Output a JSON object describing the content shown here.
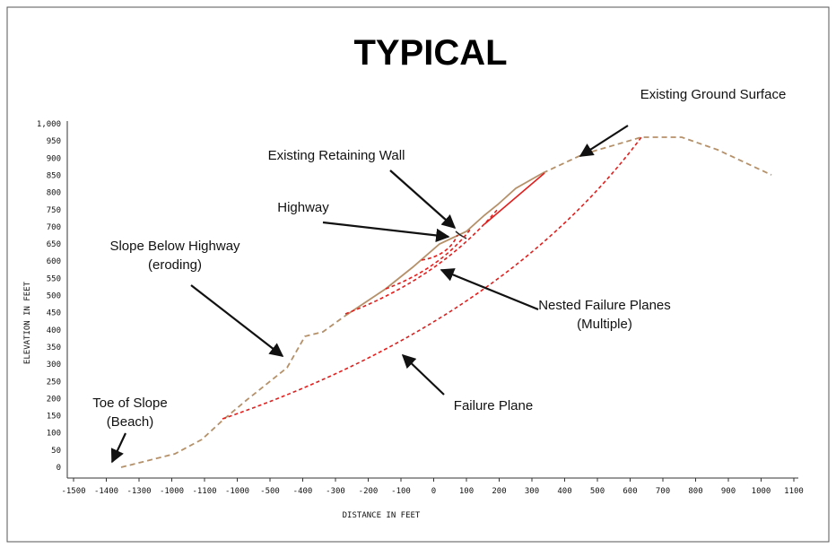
{
  "title": "TYPICAL",
  "y_axis": {
    "label": "ELEVATION IN FEET",
    "ticks": [
      "0",
      "50",
      "100",
      "150",
      "200",
      "250",
      "300",
      "350",
      "400",
      "450",
      "500",
      "550",
      "600",
      "650",
      "700",
      "750",
      "800",
      "850",
      "900",
      "950",
      "1,000"
    ]
  },
  "x_axis": {
    "label": "DISTANCE IN FEET",
    "ticks": [
      "-1500",
      "-1400",
      "-1300",
      "-1000",
      "-1100",
      "-1000",
      "-500",
      "-400",
      "-300",
      "-200",
      "-100",
      "0",
      "100",
      "200",
      "300",
      "400",
      "500",
      "600",
      "700",
      "800",
      "900",
      "1000",
      "1100"
    ]
  },
  "annotations": [
    {
      "lines": [
        "Existing Ground Surface"
      ]
    },
    {
      "lines": [
        "Existing Retaining Wall"
      ]
    },
    {
      "lines": [
        "Highway"
      ]
    },
    {
      "lines": [
        "Slope Below Highway",
        "(eroding)"
      ]
    },
    {
      "lines": [
        "Nested Failure Planes",
        "(Multiple)"
      ]
    },
    {
      "lines": [
        "Failure Plane"
      ]
    },
    {
      "lines": [
        "Toe of Slope",
        "(Beach)"
      ]
    }
  ]
}
